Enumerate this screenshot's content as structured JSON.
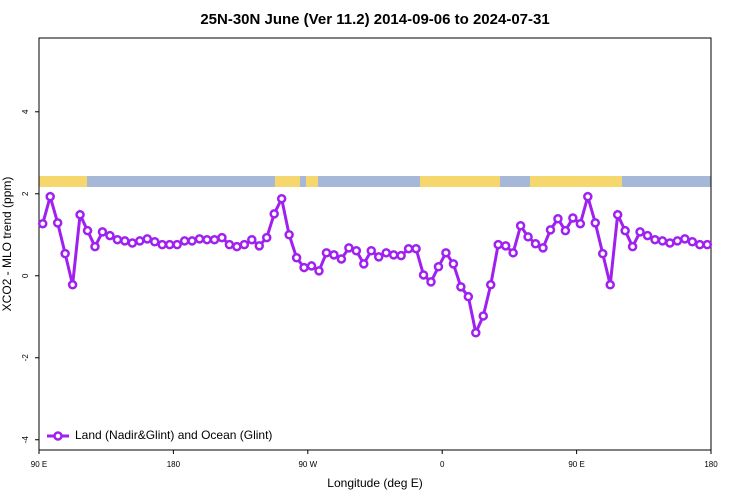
{
  "chart_data": {
    "type": "line",
    "title": "25N-30N June (Ver 11.2)   2014-09-06 to 2024-07-31",
    "xlabel": "Longitude (deg E)",
    "ylabel": "XCO2 - MLO trend (ppm)",
    "x": [
      92.5,
      97.5,
      102.5,
      107.5,
      112.5,
      117.5,
      122.5,
      127.5,
      132.5,
      137.5,
      142.5,
      147.5,
      152.5,
      157.5,
      162.5,
      167.5,
      172.5,
      177.5,
      182.5,
      187.5,
      192.5,
      197.5,
      202.5,
      207.5,
      212.5,
      217.5,
      222.5,
      227.5,
      232.5,
      237.5,
      242.5,
      247.5,
      252.5,
      257.5,
      262.5,
      267.5,
      272.5,
      277.5,
      282.5,
      287.5,
      292.5,
      297.5,
      302.5,
      307.5,
      312.5,
      317.5,
      322.5,
      327.5,
      332.5,
      337.5,
      342.5,
      347.5,
      352.5,
      357.5,
      362.5,
      367.5,
      372.5,
      377.5,
      382.5,
      387.5,
      392.5,
      397.5,
      402.5,
      407.5,
      412.5,
      417.5,
      422.5,
      427.5,
      432.5,
      437.5,
      442.5,
      447.5,
      452.5,
      457.5,
      462.5,
      467.5,
      472.5,
      477.5,
      482.5,
      487.5,
      492.5,
      497.5,
      502.5,
      507.5,
      512.5,
      517.5,
      522.5,
      527.5,
      532.5,
      537.5
    ],
    "series": [
      {
        "name": "Land (Nadir&Glint) and Ocean (Glint)",
        "color": "#a020f0",
        "values": [
          1.27,
          1.93,
          1.29,
          0.54,
          -0.22,
          1.49,
          1.1,
          0.71,
          1.07,
          0.98,
          0.88,
          0.85,
          0.8,
          0.85,
          0.9,
          0.83,
          0.76,
          0.76,
          0.76,
          0.85,
          0.85,
          0.9,
          0.88,
          0.88,
          0.93,
          0.76,
          0.71,
          0.76,
          0.88,
          0.73,
          0.93,
          1.51,
          1.88,
          1.0,
          0.44,
          0.2,
          0.24,
          0.12,
          0.56,
          0.51,
          0.41,
          0.68,
          0.61,
          0.29,
          0.61,
          0.46,
          0.56,
          0.51,
          0.49,
          0.66,
          0.66,
          0.02,
          -0.15,
          0.22,
          0.56,
          0.29,
          -0.27,
          -0.51,
          -1.39,
          -0.98,
          -0.22,
          0.76,
          0.73,
          0.56,
          1.22,
          0.95,
          0.78,
          0.68,
          1.12,
          1.39,
          1.1,
          1.41,
          1.27,
          1.93,
          1.29,
          0.54,
          -0.22,
          1.49,
          1.1,
          0.71,
          1.07,
          0.98,
          0.88,
          0.85,
          0.8,
          0.85,
          0.9,
          0.83,
          0.76,
          0.76
        ]
      }
    ],
    "xlim": [
      90,
      540
    ],
    "xticks": [
      {
        "value": 90,
        "label": "90 E"
      },
      180,
      {
        "value": 270,
        "label": "90 W"
      },
      {
        "value": 360,
        "label": "0"
      },
      {
        "value": 450,
        "label": "90 E"
      },
      {
        "value": 540,
        "label": "180"
      }
    ],
    "ylim": [
      -4.25,
      5.8
    ],
    "yticks": [
      -4,
      -2,
      0,
      2,
      4
    ],
    "legend": "bottom-left"
  }
}
